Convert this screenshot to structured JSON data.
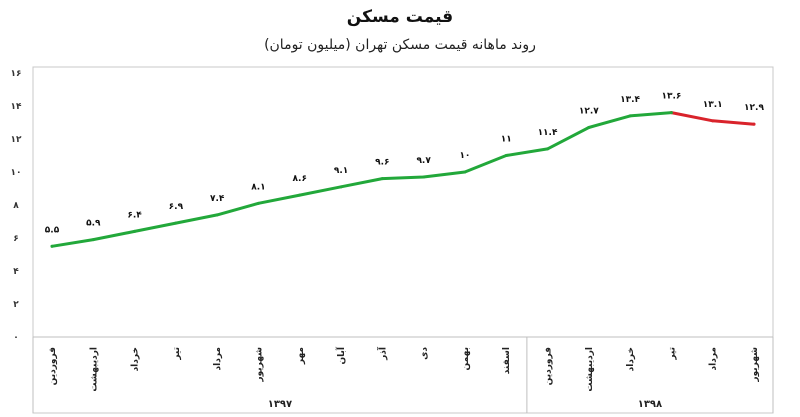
{
  "chart_data": {
    "type": "line",
    "title": "قیمت مسکن",
    "subtitle": "روند ماهانه قیمت مسکن تهران (میلیون تومان)",
    "xlabel": "",
    "ylabel": "",
    "ylim": [
      0,
      16
    ],
    "yticks": [
      0,
      2,
      4,
      6,
      8,
      10,
      12,
      14,
      16
    ],
    "ytick_labels": [
      "۰",
      "۲",
      "۴",
      "۶",
      "۸",
      "۱۰",
      "۱۲",
      "۱۴",
      "۱۶"
    ],
    "grid": false,
    "categories": [
      "فروردین",
      "اردیبهشت",
      "خرداد",
      "تیر",
      "مرداد",
      "شهریور",
      "مهر",
      "آبان",
      "آذر",
      "دی",
      "بهمن",
      "اسفند",
      "فروردین",
      "اردیبهشت",
      "خرداد",
      "تیر",
      "مرداد",
      "شهریور"
    ],
    "values": [
      5.5,
      5.9,
      6.4,
      6.9,
      7.4,
      8.1,
      8.6,
      9.1,
      9.6,
      9.7,
      10,
      11,
      11.4,
      12.7,
      13.4,
      13.6,
      13.1,
      12.9
    ],
    "value_labels": [
      "۵.۵",
      "۵.۹",
      "۶.۴",
      "۶.۹",
      "۷.۴",
      "۸.۱",
      "۸.۶",
      "۹.۱",
      "۹.۶",
      "۹.۷",
      "۱۰",
      "۱۱",
      "۱۱.۴",
      "۱۲.۷",
      "۱۳.۴",
      "۱۳.۶",
      "۱۳.۱",
      "۱۲.۹"
    ],
    "year_groups": [
      {
        "label": "۱۳۹۷",
        "start": 0,
        "end": 11
      },
      {
        "label": "۱۳۹۸",
        "start": 12,
        "end": 17
      }
    ],
    "colors": {
      "rising": "#22a83a",
      "falling": "#d9232b",
      "axis": "#bfbfbf",
      "text": "#222222"
    }
  }
}
